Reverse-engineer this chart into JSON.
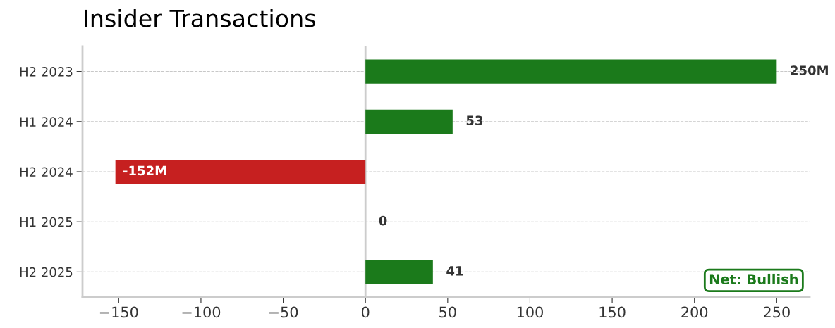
{
  "chart_data": {
    "type": "bar",
    "orientation": "horizontal",
    "title": "Insider Transactions",
    "categories": [
      "H2 2023",
      "H1 2024",
      "H2 2024",
      "H1 2025",
      "H2 2025"
    ],
    "values": [
      250,
      53,
      -152,
      0,
      41
    ],
    "colors": [
      "#1b7a1b",
      "#1b7a1b",
      "#c62020",
      "#1b7a1b",
      "#1b7a1b"
    ],
    "value_labels": [
      "250M",
      "53",
      "-152M",
      "0",
      "41"
    ],
    "xlim": [
      -172,
      270
    ],
    "xticks": [
      {
        "value": -150,
        "label": "−150"
      },
      {
        "value": -100,
        "label": "−100"
      },
      {
        "value": -50,
        "label": "−50"
      },
      0,
      50,
      100,
      150,
      200,
      250
    ],
    "grid": "y",
    "ref_lines": [
      {
        "axis": "x",
        "value": 0,
        "color": "#cccccc"
      }
    ],
    "annotations": [
      "Net: Bullish"
    ]
  }
}
